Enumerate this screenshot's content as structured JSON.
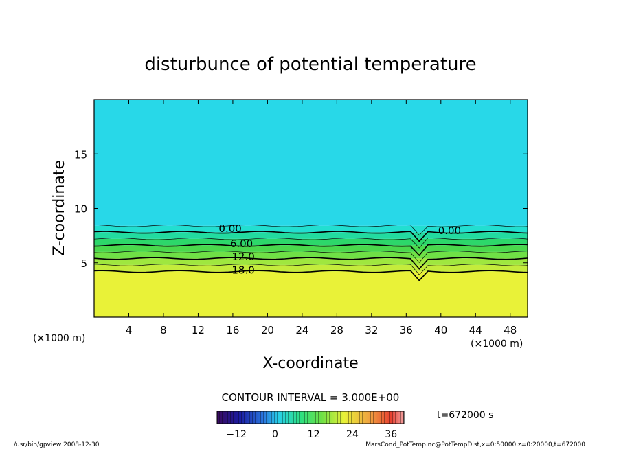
{
  "chart_data": {
    "type": "heatmap",
    "title": "disturbunce of potential temperature",
    "xlabel": "X-coordinate",
    "ylabel": "Z-coordinate",
    "x_unit_left": "(×1000 m)",
    "x_unit_right": "(×1000 m)",
    "xlim": [
      0,
      50
    ],
    "ylim": [
      0,
      20
    ],
    "x_ticks": [
      4,
      8,
      12,
      16,
      20,
      24,
      28,
      32,
      36,
      40,
      44,
      48
    ],
    "y_ticks": [
      5,
      10,
      15
    ],
    "contour_interval_text": "CONTOUR INTERVAL = 3.000E+00",
    "time_text": "t=672000 s",
    "contour_labels": [
      {
        "text": "0.00",
        "x": 15.7,
        "z": 8.2
      },
      {
        "text": "6.00",
        "x": 17.0,
        "z": 6.8
      },
      {
        "text": "12.0",
        "x": 17.2,
        "z": 5.6
      },
      {
        "text": "18.0",
        "x": 17.2,
        "z": 4.4
      },
      {
        "text": "0.00",
        "x": 41.0,
        "z": 8.0
      }
    ],
    "colorbar": {
      "min": -18,
      "max": 40,
      "tick_values": [
        -12,
        0,
        12,
        24,
        36
      ],
      "tick_labels": [
        "−12",
        "0",
        "12",
        "24",
        "36"
      ]
    },
    "layers": [
      {
        "z_from": 0,
        "z_to": 4.2,
        "value": 22,
        "color": "#e9f238"
      },
      {
        "z_from": 4.2,
        "z_to": 4.8,
        "value": 19,
        "color": "#c4ec3c"
      },
      {
        "z_from": 4.8,
        "z_to": 5.4,
        "value": 16,
        "color": "#9fe73f"
      },
      {
        "z_from": 5.4,
        "z_to": 6.0,
        "value": 13,
        "color": "#6fe046"
      },
      {
        "z_from": 6.0,
        "z_to": 6.6,
        "value": 10,
        "color": "#4ad84c"
      },
      {
        "z_from": 6.6,
        "z_to": 7.2,
        "value": 7,
        "color": "#2dd76a"
      },
      {
        "z_from": 7.2,
        "z_to": 7.8,
        "value": 4,
        "color": "#22dba0"
      },
      {
        "z_from": 7.8,
        "z_to": 8.4,
        "value": 1,
        "color": "#22dfd0"
      },
      {
        "z_from": 8.4,
        "z_to": 20,
        "value": -2,
        "color": "#28d8e8"
      }
    ]
  },
  "footer": {
    "left": "/usr/bin/gpview  2008-12-30",
    "right": "MarsCond_PotTemp.nc@PotTempDist,x=0:50000,z=0:20000,t=672000"
  }
}
